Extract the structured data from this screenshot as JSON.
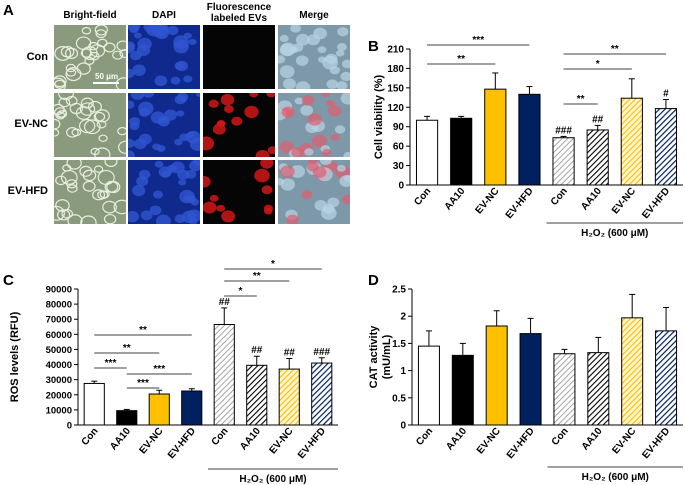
{
  "panel_letters": {
    "a": "A",
    "b": "B",
    "c": "C",
    "d": "D"
  },
  "panel_a": {
    "columns": [
      "Bright-field",
      "DAPI",
      "Fluorescence labeled EVs",
      "Merge"
    ],
    "rows": [
      "Con",
      "EV-NC",
      "EV-HFD"
    ],
    "scale_bar": "50 μm"
  },
  "chart_data": [
    {
      "id": "B",
      "type": "bar",
      "ylabel": "Cell viability (%)",
      "ylim": [
        0,
        210
      ],
      "yticks": [
        0,
        30,
        60,
        90,
        120,
        150,
        180,
        210
      ],
      "categories": [
        "Con",
        "AA10",
        "EV-NC",
        "EV-HFD",
        "Con",
        "AA10",
        "EV-NC",
        "EV-HFD"
      ],
      "values": [
        100,
        103,
        148,
        140,
        73,
        85,
        134,
        118
      ],
      "errors": [
        6,
        3,
        25,
        12,
        2,
        7,
        30,
        14
      ],
      "hash_labels": [
        "",
        "",
        "",
        "",
        "###",
        "##",
        "",
        "#"
      ],
      "group_label": "H₂O₂ (600 μM)",
      "significance": [
        {
          "from": 0,
          "to": 3,
          "label": "***"
        },
        {
          "from": 0,
          "to": 2,
          "label": "**"
        },
        {
          "from": 4,
          "to": 7,
          "label": "**"
        },
        {
          "from": 4,
          "to": 6,
          "label": "*"
        },
        {
          "from": 4,
          "to": 5,
          "label": "**"
        }
      ]
    },
    {
      "id": "C",
      "type": "bar",
      "ylabel": "ROS levels (RFU)",
      "ylim": [
        0,
        90000
      ],
      "yticks": [
        0,
        10000,
        20000,
        30000,
        40000,
        50000,
        60000,
        70000,
        80000,
        90000
      ],
      "categories": [
        "Con",
        "AA10",
        "EV-NC",
        "EV-HFD",
        "Con",
        "AA10",
        "EV-NC",
        "EV-HFD"
      ],
      "values": [
        27500,
        9500,
        20500,
        22500,
        66500,
        39500,
        37000,
        41000
      ],
      "errors": [
        1500,
        800,
        2500,
        1500,
        11000,
        6000,
        7000,
        3500
      ],
      "hash_labels": [
        "",
        "",
        "",
        "",
        "##",
        "##",
        "##",
        "###"
      ],
      "group_label": "H₂O₂ (600 μM)",
      "significance": [
        {
          "from": 0,
          "to": 3,
          "label": "**"
        },
        {
          "from": 0,
          "to": 2,
          "label": "**"
        },
        {
          "from": 0,
          "to": 1,
          "label": "***"
        },
        {
          "from": 1,
          "to": 3,
          "label": "***"
        },
        {
          "from": 1,
          "to": 2,
          "label": "***"
        },
        {
          "from": 4,
          "to": 7,
          "label": "*"
        },
        {
          "from": 4,
          "to": 6,
          "label": "**"
        },
        {
          "from": 4,
          "to": 5,
          "label": "*"
        }
      ]
    },
    {
      "id": "D",
      "type": "bar",
      "ylabel": "CAT activity (mU/mL)",
      "ylim": [
        0,
        2.5
      ],
      "yticks": [
        0,
        0.5,
        1,
        1.5,
        2,
        2.5
      ],
      "categories": [
        "Con",
        "AA10",
        "EV-NC",
        "EV-HFD",
        "Con",
        "AA10",
        "EV-NC",
        "EV-HFD"
      ],
      "values": [
        1.45,
        1.28,
        1.82,
        1.68,
        1.31,
        1.33,
        1.97,
        1.73
      ],
      "errors": [
        0.28,
        0.22,
        0.28,
        0.28,
        0.08,
        0.28,
        0.43,
        0.43
      ],
      "hash_labels": [
        "",
        "",
        "",
        "",
        "",
        "",
        "",
        ""
      ],
      "group_label": "H₂O₂ (600 μM)",
      "significance": []
    }
  ],
  "colors": {
    "con": "#ffffff",
    "aa10": "#000000",
    "evnc": "#ffc000",
    "evhfd": "#002060"
  }
}
